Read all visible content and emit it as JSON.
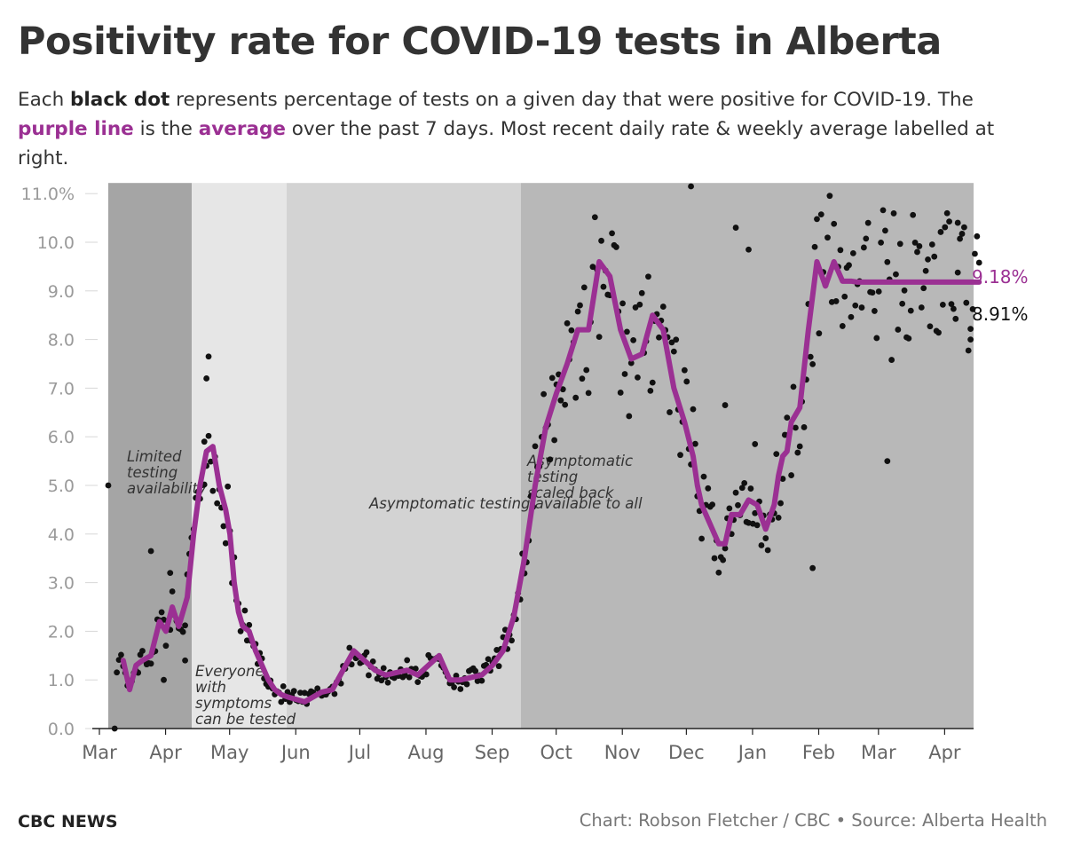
{
  "title": "Positivity rate for COVID-19 tests in Alberta",
  "subtitle": {
    "part1": "Each ",
    "bold1": "black dot",
    "part2": " represents percentage of tests on a given day that were positive for COVID-19. The ",
    "purple1": "purple line",
    "part3": " is the ",
    "purple2": "average",
    "part4": " over the past 7 days. Most recent daily rate & weekly average labelled at right."
  },
  "footer": {
    "brand": "CBC NEWS",
    "credit": "Chart: Robson Fletcher / CBC • Source: Alberta Health"
  },
  "colors": {
    "avg_line": "#9b3093",
    "dots": "#111111",
    "band_dark": "#a5a5a5",
    "band_light": "#e6e6e6",
    "band_mid": "#d3d3d3",
    "band_recent": "#b8b8b8"
  },
  "chart_data": {
    "type": "scatter",
    "title": "Positivity rate for COVID-19 tests in Alberta",
    "xlabel": "",
    "ylabel": "",
    "x_unit": "days since Mar 1, 2020",
    "ylim": [
      0,
      11
    ],
    "y_ticks": [
      0,
      1,
      2,
      3,
      4,
      5,
      6,
      7,
      8,
      9,
      10,
      11
    ],
    "y_tick_labels": [
      "0.0",
      "1.0",
      "2.0",
      "3.0",
      "4.0",
      "5.0",
      "6.0",
      "7.0",
      "8.0",
      "9.0",
      "10.0",
      "11.0%"
    ],
    "xlim": [
      0,
      410
    ],
    "x_ticks": [
      0,
      31,
      61,
      92,
      122,
      153,
      184,
      214,
      245,
      275,
      306,
      337,
      365,
      396
    ],
    "x_tick_labels": [
      "Mar",
      "Apr",
      "May",
      "Jun",
      "Jul",
      "Aug",
      "Sep",
      "Oct",
      "Nov",
      "Dec",
      "Jan",
      "Feb",
      "Mar",
      "Apr"
    ],
    "periods": [
      {
        "start": 7,
        "end": 48,
        "shade": "band_dark",
        "label": "Limited testing availability"
      },
      {
        "start": 48,
        "end": 94,
        "shade": "band_light",
        "label": "Everyone with symptoms can be tested"
      },
      {
        "start": 94,
        "end": 208,
        "shade": "band_mid",
        "label": "Asymptomatic testing available to all"
      },
      {
        "start": 208,
        "end": 431,
        "shade": "band_recent",
        "label": "Asymptomatic testing scaled back"
      }
    ],
    "seven_day_avg": {
      "name": "7-day average",
      "x": [
        7,
        10,
        13,
        16,
        20,
        24,
        27,
        30,
        33,
        37,
        40,
        43,
        46,
        49,
        52,
        55,
        57,
        59,
        61,
        63,
        66,
        69,
        72,
        75,
        78,
        81,
        84,
        88,
        92,
        96,
        100,
        105,
        110,
        115,
        120,
        125,
        130,
        135,
        140,
        145,
        150,
        155,
        160,
        165,
        170,
        175,
        180,
        185,
        190,
        195,
        200,
        205,
        210,
        215,
        220,
        225,
        230,
        235,
        240,
        245,
        250,
        255,
        260,
        265,
        270,
        274,
        276,
        278,
        280,
        283,
        286,
        289,
        292,
        296,
        300,
        304,
        308,
        312,
        314,
        316,
        318,
        320,
        324,
        328,
        332,
        336,
        340,
        344,
        348,
        351,
        354,
        356,
        358,
        360,
        364,
        368,
        372,
        376,
        380,
        384,
        388,
        392,
        395,
        398,
        400,
        402,
        404,
        406,
        408
      ],
      "values": [
        1.4,
        0.8,
        1.3,
        1.4,
        1.5,
        2.2,
        2.0,
        2.5,
        2.1,
        2.7,
        4.0,
        5.0,
        5.7,
        5.8,
        5.0,
        4.5,
        4.0,
        3.0,
        2.4,
        2.1,
        2.0,
        1.6,
        1.3,
        1.0,
        0.8,
        0.7,
        0.65,
        0.6,
        0.55,
        0.65,
        0.75,
        0.8,
        1.2,
        1.6,
        1.4,
        1.2,
        1.1,
        1.15,
        1.2,
        1.1,
        1.3,
        1.5,
        1.0,
        1.0,
        1.05,
        1.1,
        1.3,
        1.6,
        2.3,
        3.5,
        5.0,
        6.2,
        6.9,
        7.5,
        8.2,
        8.2,
        9.6,
        9.3,
        8.2,
        7.6,
        7.7,
        8.5,
        8.2,
        7.0,
        6.3,
        5.6,
        5.0,
        4.6,
        4.4,
        4.1,
        3.8,
        3.8,
        4.4,
        4.4,
        4.7,
        4.6,
        4.1,
        4.6,
        5.2,
        5.6,
        5.7,
        6.3,
        6.6,
        8.2,
        9.6,
        9.1,
        9.6,
        9.2,
        9.2,
        9.18,
        9.18,
        9.18,
        9.18,
        9.18,
        9.18,
        9.18,
        9.18,
        9.18,
        9.18,
        9.18,
        9.18,
        9.18,
        9.18,
        9.18,
        9.18,
        9.18,
        9.18,
        9.18,
        9.18
      ],
      "last_value": 9.18,
      "last_label": "9.18%"
    },
    "daily_rate": {
      "name": "Daily positivity rate",
      "description": "one dot per day, scattered around the 7-day average; notable outliers listed",
      "outliers": [
        {
          "x": 0,
          "y": 5.0
        },
        {
          "x": 3,
          "y": 0.0
        },
        {
          "x": 20,
          "y": 3.65
        },
        {
          "x": 26,
          "y": 1.0
        },
        {
          "x": 29,
          "y": 3.2
        },
        {
          "x": 36,
          "y": 1.4
        },
        {
          "x": 46,
          "y": 7.2
        },
        {
          "x": 47,
          "y": 7.65
        },
        {
          "x": 45,
          "y": 5.9
        },
        {
          "x": 273,
          "y": 11.15
        },
        {
          "x": 289,
          "y": 6.65
        },
        {
          "x": 294,
          "y": 10.3
        },
        {
          "x": 300,
          "y": 9.85
        },
        {
          "x": 303,
          "y": 5.85
        },
        {
          "x": 330,
          "y": 3.3
        },
        {
          "x": 365,
          "y": 5.5
        },
        {
          "x": 398,
          "y": 10.4
        },
        {
          "x": 404,
          "y": 8.0
        }
      ],
      "last_value": 8.91,
      "last_label": "8.91%"
    }
  }
}
